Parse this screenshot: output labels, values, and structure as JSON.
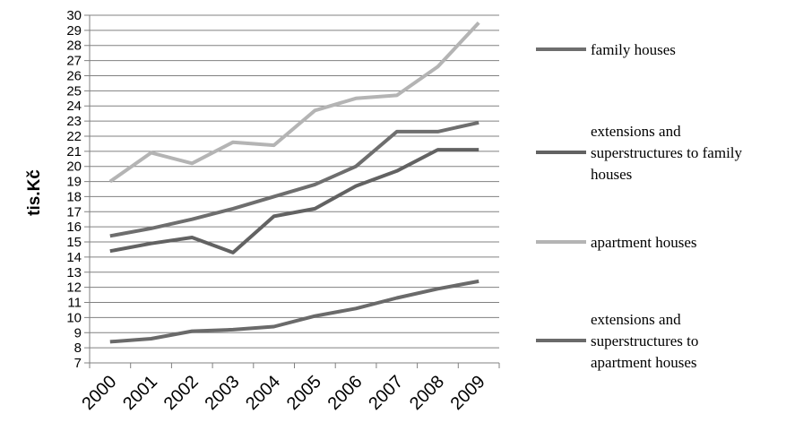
{
  "chart_data": {
    "type": "line",
    "title": "",
    "xlabel": "",
    "ylabel": "tis.Kč",
    "ylim": [
      7,
      30
    ],
    "yticks": [
      7,
      8,
      9,
      10,
      11,
      12,
      13,
      14,
      15,
      16,
      17,
      18,
      19,
      20,
      21,
      22,
      23,
      24,
      25,
      26,
      27,
      28,
      29,
      30
    ],
    "grid": true,
    "legend_position": "right",
    "categories": [
      "2000",
      "2001",
      "2002",
      "2003",
      "2004",
      "2005",
      "2006",
      "2007",
      "2008",
      "2009"
    ],
    "series": [
      {
        "name": "family houses",
        "legend_lines": [
          "family houses"
        ],
        "color": "#6e6e6e",
        "values": [
          15.4,
          15.9,
          16.5,
          17.2,
          18.0,
          18.8,
          20.0,
          22.3,
          22.3,
          22.9
        ]
      },
      {
        "name": "extensions and superstructures to family houses",
        "legend_lines": [
          "extensions and",
          "superstructures to family",
          "houses"
        ],
        "color": "#626262",
        "values": [
          14.4,
          14.9,
          15.3,
          14.3,
          16.7,
          17.2,
          18.7,
          19.7,
          21.1,
          21.1
        ]
      },
      {
        "name": "apartment houses",
        "legend_lines": [
          "apartment houses"
        ],
        "color": "#b4b4b4",
        "values": [
          19.0,
          20.9,
          20.2,
          21.6,
          21.4,
          23.7,
          24.5,
          24.7,
          26.6,
          29.5
        ]
      },
      {
        "name": "extensions and superstructures to apartment houses",
        "legend_lines": [
          "extensions and",
          "superstructures to",
          "apartment houses"
        ],
        "color": "#6a6a6a",
        "values": [
          8.4,
          8.6,
          9.1,
          9.2,
          9.4,
          10.1,
          10.6,
          11.3,
          11.9,
          12.4
        ]
      }
    ]
  }
}
